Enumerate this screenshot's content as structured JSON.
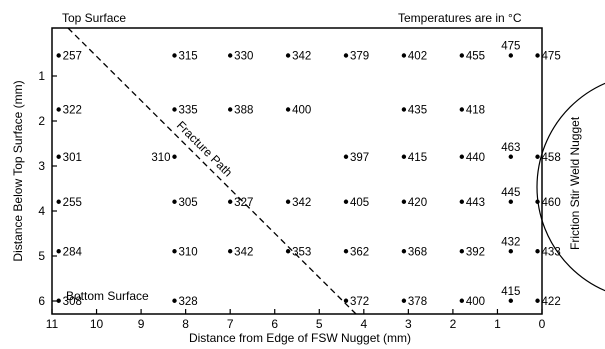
{
  "labels": {
    "top_surface": "Top Surface",
    "bottom_surface": "Bottom Surface",
    "units_note": "Temperatures are in °C",
    "fracture_path": "Fracture Path",
    "nugget": "Friction Stir Weld Nugget"
  },
  "axes": {
    "x_title": "Distance from Edge of FSW Nugget (mm)",
    "y_title": "Distance Below Top Surface (mm)",
    "x_ticks": [
      "11",
      "10",
      "9",
      "8",
      "7",
      "6",
      "5",
      "4",
      "3",
      "2",
      "1",
      "0"
    ],
    "y_ticks": [
      "1",
      "2",
      "3",
      "4",
      "5",
      "6"
    ],
    "x_range": [
      11,
      0
    ],
    "y_range": [
      0,
      6.5
    ]
  },
  "rows": [
    {
      "depth": 0.5,
      "points": [
        {
          "x": 10.85,
          "t": "257",
          "side": "right"
        },
        {
          "x": 8.25,
          "t": "315",
          "side": "right"
        },
        {
          "x": 7.0,
          "t": "330",
          "side": "right"
        },
        {
          "x": 5.7,
          "t": "342",
          "side": "right"
        },
        {
          "x": 4.4,
          "t": "379",
          "side": "right"
        },
        {
          "x": 3.1,
          "t": "402",
          "side": "right"
        },
        {
          "x": 1.8,
          "t": "455",
          "side": "right"
        },
        {
          "x": 0.7,
          "t": "475",
          "side": "above"
        },
        {
          "x": 0.1,
          "t": "475",
          "side": "right"
        }
      ]
    },
    {
      "depth": 1.7,
      "points": [
        {
          "x": 10.85,
          "t": "322",
          "side": "right"
        },
        {
          "x": 8.25,
          "t": "335",
          "side": "right"
        },
        {
          "x": 7.0,
          "t": "388",
          "side": "right"
        },
        {
          "x": 5.7,
          "t": "400",
          "side": "right"
        },
        {
          "x": 3.1,
          "t": "435",
          "side": "right"
        },
        {
          "x": 1.8,
          "t": "418",
          "side": "right"
        }
      ]
    },
    {
      "depth": 2.75,
      "points": [
        {
          "x": 10.85,
          "t": "301",
          "side": "right"
        },
        {
          "x": 8.25,
          "t": "310",
          "side": "left"
        },
        {
          "x": 4.4,
          "t": "397",
          "side": "right"
        },
        {
          "x": 3.1,
          "t": "415",
          "side": "right"
        },
        {
          "x": 1.8,
          "t": "440",
          "side": "right"
        },
        {
          "x": 0.7,
          "t": "463",
          "side": "above"
        },
        {
          "x": 0.1,
          "t": "458",
          "side": "right"
        }
      ]
    },
    {
      "depth": 3.75,
      "points": [
        {
          "x": 10.85,
          "t": "255",
          "side": "right"
        },
        {
          "x": 8.25,
          "t": "305",
          "side": "right"
        },
        {
          "x": 7.0,
          "t": "327",
          "side": "right"
        },
        {
          "x": 5.7,
          "t": "342",
          "side": "right"
        },
        {
          "x": 4.4,
          "t": "405",
          "side": "right"
        },
        {
          "x": 3.1,
          "t": "420",
          "side": "right"
        },
        {
          "x": 1.8,
          "t": "443",
          "side": "right"
        },
        {
          "x": 0.7,
          "t": "445",
          "side": "above"
        },
        {
          "x": 0.1,
          "t": "460",
          "side": "right"
        }
      ]
    },
    {
      "depth": 4.85,
      "points": [
        {
          "x": 10.85,
          "t": "284",
          "side": "right"
        },
        {
          "x": 8.25,
          "t": "310",
          "side": "right"
        },
        {
          "x": 7.0,
          "t": "342",
          "side": "right"
        },
        {
          "x": 5.7,
          "t": "353",
          "side": "right"
        },
        {
          "x": 4.4,
          "t": "362",
          "side": "right"
        },
        {
          "x": 3.1,
          "t": "368",
          "side": "right"
        },
        {
          "x": 1.8,
          "t": "392",
          "side": "right"
        },
        {
          "x": 0.7,
          "t": "432",
          "side": "above"
        },
        {
          "x": 0.1,
          "t": "433",
          "side": "right"
        }
      ]
    },
    {
      "depth": 5.95,
      "points": [
        {
          "x": 10.85,
          "t": "308",
          "side": "right"
        },
        {
          "x": 8.25,
          "t": "328",
          "side": "right"
        },
        {
          "x": 4.4,
          "t": "372",
          "side": "right"
        },
        {
          "x": 3.1,
          "t": "378",
          "side": "right"
        },
        {
          "x": 1.8,
          "t": "400",
          "side": "right"
        },
        {
          "x": 0.7,
          "t": "415",
          "side": "above"
        },
        {
          "x": 0.1,
          "t": "422",
          "side": "right"
        }
      ]
    }
  ]
}
